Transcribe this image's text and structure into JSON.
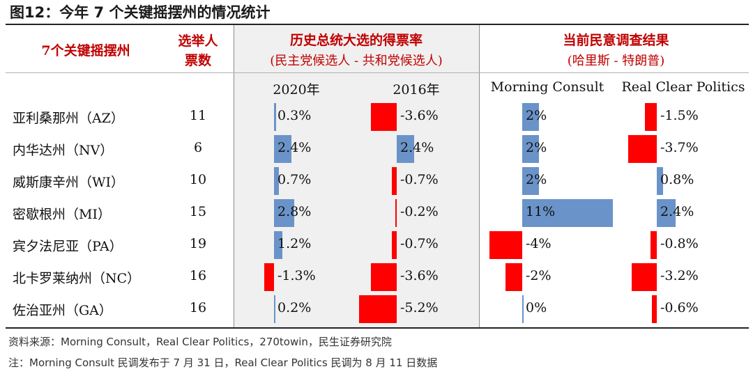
{
  "title": "图12：今年 7 个关键摇摆州的情况统计",
  "headers": {
    "state": "7个关键摇摆州",
    "votes_line1": "选举人",
    "votes_line2": "票数",
    "history": "历史总统大选的得票率",
    "history_sub": "(民主党候选人 - 共和党候选人)",
    "poll": "当前民意调查结果",
    "poll_sub": "(哈里斯 - 特朗普)",
    "col_2020": "2020年",
    "col_2016": "2016年",
    "col_mc": "Morning Consult",
    "col_rcp": "Real Clear Politics"
  },
  "chart_data": {
    "type": "table",
    "columns": [
      "2020年",
      "2016年",
      "Morning Consult",
      "Real Clear Politics"
    ],
    "rows": [
      {
        "state": "亚利桑那州（AZ）",
        "votes": "11",
        "v2020": 0.3,
        "v2016": -3.6,
        "mc": 2,
        "rcp": -1.5,
        "l2020": "0.3%",
        "l2016": "-3.6%",
        "lmc": "2%",
        "lrcp": "-1.5%"
      },
      {
        "state": "内华达州（NV）",
        "votes": "6",
        "v2020": 2.4,
        "v2016": 2.4,
        "mc": 2,
        "rcp": -3.7,
        "l2020": "2.4%",
        "l2016": "2.4%",
        "lmc": "2%",
        "lrcp": "-3.7%"
      },
      {
        "state": "威斯康辛州（WI）",
        "votes": "10",
        "v2020": 0.7,
        "v2016": -0.7,
        "mc": 2,
        "rcp": 0.8,
        "l2020": "0.7%",
        "l2016": "-0.7%",
        "lmc": "2%",
        "lrcp": "0.8%"
      },
      {
        "state": "密歇根州（MI）",
        "votes": "15",
        "v2020": 2.8,
        "v2016": -0.2,
        "mc": 11,
        "rcp": 2.4,
        "l2020": "2.8%",
        "l2016": "-0.2%",
        "lmc": "11%",
        "lrcp": "2.4%"
      },
      {
        "state": "宾夕法尼亚（PA）",
        "votes": "19",
        "v2020": 1.2,
        "v2016": -0.7,
        "mc": -4,
        "rcp": -0.8,
        "l2020": "1.2%",
        "l2016": "-0.7%",
        "lmc": "-4%",
        "lrcp": "-0.8%"
      },
      {
        "state": "北卡罗莱纳州（NC）",
        "votes": "16",
        "v2020": -1.3,
        "v2016": -3.6,
        "mc": -2,
        "rcp": -3.2,
        "l2020": "-1.3%",
        "l2016": "-3.6%",
        "lmc": "-2%",
        "lrcp": "-3.2%"
      },
      {
        "state": "佐治亚州（GA）",
        "votes": "16",
        "v2020": 0.2,
        "v2016": -5.2,
        "mc": 0,
        "rcp": -0.6,
        "l2020": "0.2%",
        "l2016": "-5.2%",
        "lmc": "0%",
        "lrcp": "-0.6%"
      }
    ],
    "colors": {
      "positive": "#6a93c9",
      "negative": "#ff0000",
      "header": "#c00000"
    }
  },
  "footer": {
    "source": "资料来源：Morning Consult，Real Clear Politics，270towin，民生证券研究院",
    "note": "注：Morning Consult 民调发布于 7 月 31 日，Real Clear Politics 民调为 8 月 11 日数据"
  }
}
